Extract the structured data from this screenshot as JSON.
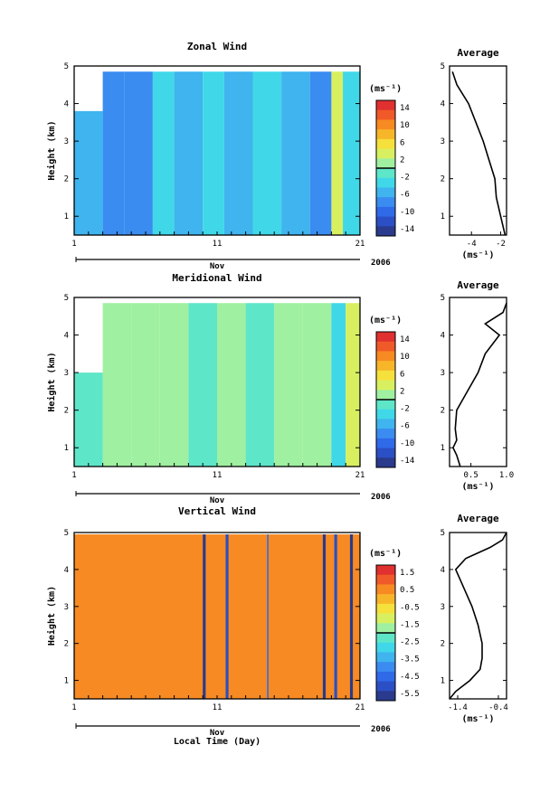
{
  "chart_data": [
    {
      "type": "heatmap",
      "title": "Zonal Wind",
      "ylabel": "Height (km)",
      "xlabel": "",
      "x_ticks": [
        "1",
        "11",
        "21"
      ],
      "month_label": "Nov",
      "year_label": "2006",
      "y_ticks": [
        "1",
        "2",
        "3",
        "4",
        "5"
      ],
      "xlim": [
        1,
        21
      ],
      "ylim": [
        0.5,
        5
      ],
      "data_top_km": 4.85,
      "colorbar": {
        "unit": "(ms⁻¹)",
        "tick_labels": [
          "14",
          "10",
          "6",
          "2",
          "-2",
          "-6",
          "-10",
          "-14"
        ],
        "range": [
          -16,
          16
        ]
      },
      "blocks": [
        {
          "x0": 1.0,
          "x1": 3.0,
          "y0": 0.5,
          "y1": 3.8,
          "v": -6
        },
        {
          "x0": 3.0,
          "x1": 4.5,
          "y0": 0.5,
          "y1": 4.85,
          "v": -9
        },
        {
          "x0": 4.5,
          "x1": 6.5,
          "y0": 0.5,
          "y1": 4.85,
          "v": -7
        },
        {
          "x0": 6.5,
          "x1": 8.0,
          "y0": 0.5,
          "y1": 4.85,
          "v": -4
        },
        {
          "x0": 8.0,
          "x1": 10.0,
          "y0": 0.5,
          "y1": 4.85,
          "v": -5
        },
        {
          "x0": 10.0,
          "x1": 11.5,
          "y0": 0.5,
          "y1": 4.85,
          "v": -3
        },
        {
          "x0": 11.5,
          "x1": 13.5,
          "y0": 0.5,
          "y1": 4.85,
          "v": -5
        },
        {
          "x0": 13.5,
          "x1": 15.5,
          "y0": 0.5,
          "y1": 4.85,
          "v": -4
        },
        {
          "x0": 15.5,
          "x1": 17.5,
          "y0": 0.5,
          "y1": 4.85,
          "v": -6
        },
        {
          "x0": 17.5,
          "x1": 19.0,
          "y0": 0.5,
          "y1": 4.85,
          "v": -7
        },
        {
          "x0": 19.0,
          "x1": 19.8,
          "y0": 0.5,
          "y1": 4.85,
          "v": 4
        },
        {
          "x0": 19.8,
          "x1": 21.0,
          "y0": 0.5,
          "y1": 4.85,
          "v": -3
        }
      ],
      "profile": {
        "title": "Average",
        "unit_label": "(ms⁻¹)",
        "x_ticks": [
          -4,
          -2
        ],
        "xlim": [
          -5.5,
          -1.6
        ],
        "heights": [
          0.5,
          1.0,
          1.5,
          2.0,
          2.5,
          3.0,
          3.5,
          4.0,
          4.5,
          4.85
        ],
        "values": [
          -1.7,
          -2.0,
          -2.3,
          -2.4,
          -2.8,
          -3.2,
          -3.7,
          -4.2,
          -5.0,
          -5.3
        ]
      }
    },
    {
      "type": "heatmap",
      "title": "Meridional Wind",
      "ylabel": "Height (km)",
      "xlabel": "",
      "x_ticks": [
        "1",
        "11",
        "21"
      ],
      "month_label": "Nov",
      "year_label": "2006",
      "y_ticks": [
        "1",
        "2",
        "3",
        "4",
        "5"
      ],
      "xlim": [
        1,
        21
      ],
      "ylim": [
        0.5,
        5
      ],
      "data_top_km": 4.85,
      "colorbar": {
        "unit": "(ms⁻¹)",
        "tick_labels": [
          "14",
          "10",
          "6",
          "2",
          "-2",
          "-6",
          "-10",
          "-14"
        ],
        "range": [
          -16,
          16
        ]
      },
      "blocks": [
        {
          "x0": 1.0,
          "x1": 3.0,
          "y0": 0.5,
          "y1": 3.0,
          "v": -1
        },
        {
          "x0": 3.0,
          "x1": 5.0,
          "y0": 0.5,
          "y1": 4.85,
          "v": 1
        },
        {
          "x0": 5.0,
          "x1": 7.0,
          "y0": 0.5,
          "y1": 4.85,
          "v": 0
        },
        {
          "x0": 7.0,
          "x1": 9.0,
          "y0": 0.5,
          "y1": 4.85,
          "v": 2
        },
        {
          "x0": 9.0,
          "x1": 11.0,
          "y0": 0.5,
          "y1": 4.85,
          "v": -1
        },
        {
          "x0": 11.0,
          "x1": 13.0,
          "y0": 0.5,
          "y1": 4.85,
          "v": 1
        },
        {
          "x0": 13.0,
          "x1": 15.0,
          "y0": 0.5,
          "y1": 4.85,
          "v": -2
        },
        {
          "x0": 15.0,
          "x1": 17.0,
          "y0": 0.5,
          "y1": 4.85,
          "v": 0
        },
        {
          "x0": 17.0,
          "x1": 19.0,
          "y0": 0.5,
          "y1": 4.85,
          "v": 2
        },
        {
          "x0": 19.0,
          "x1": 20.0,
          "y0": 0.5,
          "y1": 4.85,
          "v": -3
        },
        {
          "x0": 20.0,
          "x1": 21.0,
          "y0": 0.5,
          "y1": 4.85,
          "v": 3
        }
      ],
      "profile": {
        "title": "Average",
        "unit_label": "(ms⁻¹)",
        "x_ticks": [
          "0.5",
          "1.0"
        ],
        "xlim": [
          0.2,
          1.0
        ],
        "heights": [
          0.5,
          0.8,
          1.0,
          1.2,
          1.5,
          2.0,
          2.5,
          3.0,
          3.5,
          4.0,
          4.3,
          4.6,
          4.85
        ],
        "values": [
          0.35,
          0.3,
          0.25,
          0.3,
          0.28,
          0.3,
          0.45,
          0.6,
          0.7,
          0.9,
          0.7,
          0.95,
          1.0
        ]
      }
    },
    {
      "type": "heatmap",
      "title": "Vertical Wind",
      "ylabel": "Height (km)",
      "xlabel": "Local Time (Day)",
      "x_ticks": [
        "1",
        "11",
        "21"
      ],
      "month_label": "Nov",
      "year_label": "2006",
      "y_ticks": [
        "1",
        "2",
        "3",
        "4",
        "5"
      ],
      "xlim": [
        1,
        21
      ],
      "ylim": [
        0.5,
        5
      ],
      "data_top_km": 4.95,
      "colorbar": {
        "unit": "(ms⁻¹)",
        "tick_labels": [
          "1.5",
          "0.5",
          "-0.5",
          "-1.5",
          "-2.5",
          "-3.5",
          "-4.5",
          "-5.5"
        ],
        "range": [
          -6,
          2
        ]
      },
      "blocks": [
        {
          "x0": 1.0,
          "x1": 21.0,
          "y0": 0.5,
          "y1": 4.95,
          "v": 0.4
        },
        {
          "x0": 10.0,
          "x1": 10.2,
          "y0": 0.5,
          "y1": 4.95,
          "v": -5.5
        },
        {
          "x0": 11.6,
          "x1": 11.8,
          "y0": 0.5,
          "y1": 4.95,
          "v": -5.0
        },
        {
          "x0": 14.5,
          "x1": 14.6,
          "y0": 0.5,
          "y1": 4.95,
          "v": -4.5
        },
        {
          "x0": 18.4,
          "x1": 18.6,
          "y0": 0.5,
          "y1": 4.95,
          "v": -5.5
        },
        {
          "x0": 19.2,
          "x1": 19.4,
          "y0": 0.5,
          "y1": 4.95,
          "v": -5.0
        },
        {
          "x0": 20.3,
          "x1": 20.5,
          "y0": 0.5,
          "y1": 4.95,
          "v": -5.5
        }
      ],
      "profile": {
        "title": "Average",
        "unit_label": "(ms⁻¹)",
        "x_ticks": [
          "-1.4",
          "-0.4"
        ],
        "xlim": [
          -1.6,
          -0.2
        ],
        "heights": [
          0.5,
          0.7,
          1.0,
          1.3,
          1.6,
          2.0,
          2.5,
          3.0,
          3.5,
          4.0,
          4.3,
          4.6,
          4.8,
          5.0
        ],
        "values": [
          -1.6,
          -1.45,
          -1.1,
          -0.85,
          -0.8,
          -0.8,
          -0.9,
          -1.05,
          -1.25,
          -1.45,
          -1.2,
          -0.6,
          -0.3,
          -0.2
        ]
      }
    }
  ]
}
